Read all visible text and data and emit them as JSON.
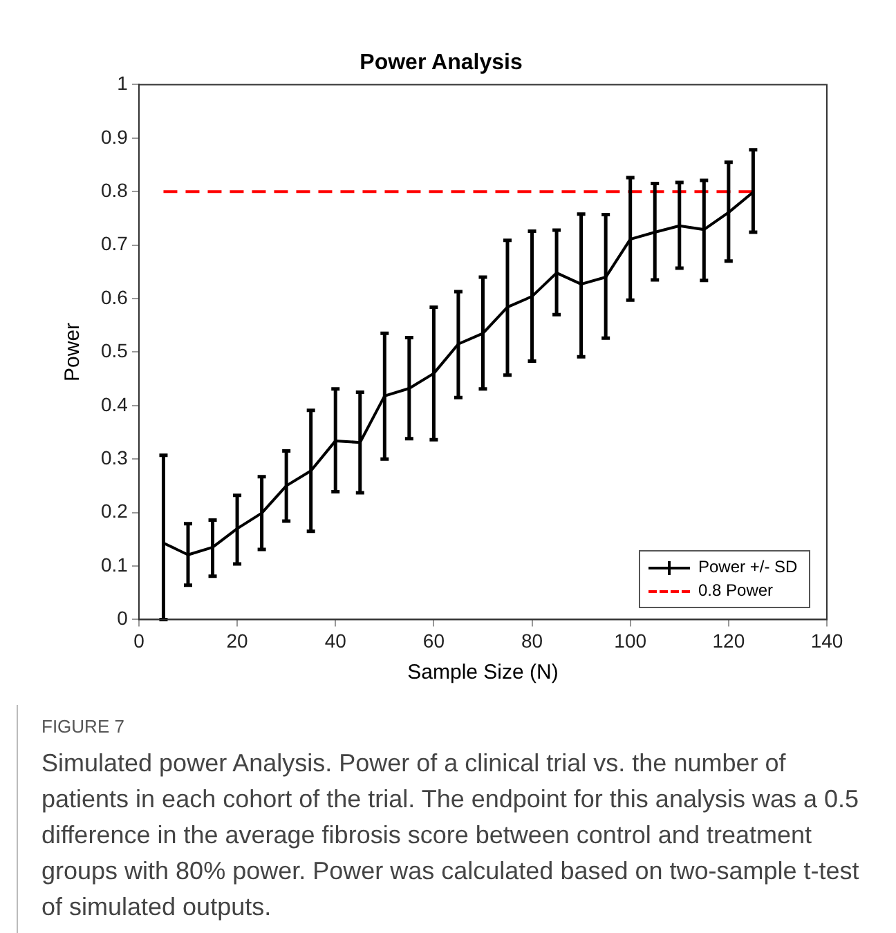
{
  "chart_data": {
    "type": "line",
    "title": "Power Analysis",
    "xlabel": "Sample Size (N)",
    "ylabel": "Power",
    "xlim": [
      0,
      140
    ],
    "xticks": [
      0,
      20,
      40,
      60,
      80,
      100,
      120,
      140
    ],
    "ylim": [
      0,
      1
    ],
    "yticks": [
      0,
      0.1,
      0.2,
      0.3,
      0.4,
      0.5,
      0.6,
      0.7,
      0.8,
      0.9,
      1
    ],
    "grid": false,
    "legend": "bottom right",
    "marker": "none",
    "series": [
      {
        "name": "Power +/- SD",
        "color": "#000000",
        "line_style": "solid",
        "x": [
          5,
          10,
          15,
          20,
          25,
          30,
          35,
          40,
          45,
          50,
          55,
          60,
          65,
          70,
          75,
          80,
          85,
          90,
          95,
          100,
          105,
          110,
          115,
          120,
          125
        ],
        "values": [
          0.143,
          0.121,
          0.135,
          0.17,
          0.199,
          0.25,
          0.278,
          0.334,
          0.331,
          0.418,
          0.432,
          0.46,
          0.515,
          0.535,
          0.584,
          0.604,
          0.648,
          0.627,
          0.64,
          0.711,
          0.724,
          0.736,
          0.729,
          0.761,
          0.799
        ],
        "errors": [
          [
            0,
            0.307
          ],
          [
            0.064,
            0.179
          ],
          [
            0.081,
            0.186
          ],
          [
            0.104,
            0.232
          ],
          [
            0.131,
            0.267
          ],
          [
            0.184,
            0.315
          ],
          [
            0.165,
            0.391
          ],
          [
            0.239,
            0.431
          ],
          [
            0.237,
            0.425
          ],
          [
            0.3,
            0.535
          ],
          [
            0.338,
            0.527
          ],
          [
            0.336,
            0.584
          ],
          [
            0.415,
            0.613
          ],
          [
            0.431,
            0.64
          ],
          [
            0.457,
            0.709
          ],
          [
            0.483,
            0.726
          ],
          [
            0.57,
            0.728
          ],
          [
            0.491,
            0.758
          ],
          [
            0.526,
            0.757
          ],
          [
            0.597,
            0.826
          ],
          [
            0.635,
            0.815
          ],
          [
            0.657,
            0.817
          ],
          [
            0.634,
            0.821
          ],
          [
            0.67,
            0.855
          ],
          [
            0.724,
            0.878
          ]
        ]
      },
      {
        "name": "0.8 Power",
        "color": "#ff0000",
        "line_style": "dashed",
        "x": [
          5,
          125
        ],
        "values": [
          0.8,
          0.8
        ]
      }
    ],
    "annotations": [
      "FIGURE 7",
      "Simulated power Analysis. Power of a clinical trial vs. the number of patients in each cohort of the trial. The endpoint for this analysis was a 0.5 difference in the average fibrosis score between control and treatment groups with 80% power. Power was calculated based on two-sample t-test of simulated outputs."
    ]
  }
}
